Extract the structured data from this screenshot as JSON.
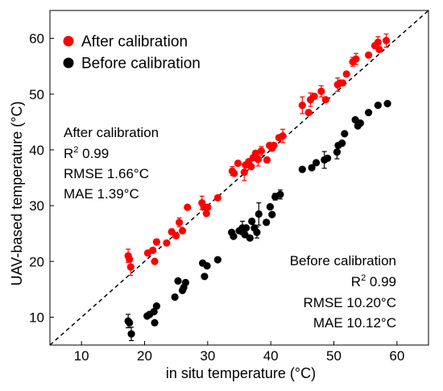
{
  "chart_data": {
    "type": "scatter",
    "xlabel": "in situ temperature (°C)",
    "ylabel": "UAV-based temperature (°C)",
    "xlim": [
      5,
      65
    ],
    "ylim": [
      5,
      65
    ],
    "xticks": [
      10,
      20,
      30,
      40,
      50,
      60
    ],
    "yticks": [
      10,
      20,
      30,
      40,
      50,
      60
    ],
    "reference_line": "y = x (dashed)",
    "grid": false,
    "legend_position": "top-left",
    "series": [
      {
        "name": "After calibration",
        "color": "#ff0000",
        "points": [
          [
            17.4,
            21.0,
            1.2
          ],
          [
            17.6,
            20.4,
            0
          ],
          [
            17.8,
            19.0,
            1.5
          ],
          [
            20.5,
            21.5,
            0
          ],
          [
            21.3,
            22.0,
            0
          ],
          [
            21.6,
            20.0,
            0
          ],
          [
            21.9,
            23.5,
            0.5
          ],
          [
            23.5,
            23.3,
            0
          ],
          [
            24.3,
            25.3,
            0.5
          ],
          [
            25.0,
            24.6,
            0
          ],
          [
            25.5,
            27.0,
            0.8
          ],
          [
            26.0,
            25.5,
            0
          ],
          [
            26.8,
            29.7,
            0
          ],
          [
            29.1,
            30.5,
            1.2
          ],
          [
            29.4,
            29.8,
            0
          ],
          [
            29.8,
            28.6,
            0
          ],
          [
            30.0,
            29.7,
            0
          ],
          [
            31.6,
            31.4,
            0
          ],
          [
            33.9,
            36.2,
            0.8
          ],
          [
            34.2,
            35.8,
            0
          ],
          [
            34.8,
            37.6,
            0
          ],
          [
            35.8,
            36.0,
            1.5
          ],
          [
            36.0,
            37.3,
            0
          ],
          [
            36.5,
            37.9,
            0
          ],
          [
            36.9,
            37.0,
            0
          ],
          [
            37.2,
            38.6,
            0
          ],
          [
            37.6,
            39.4,
            0.5
          ],
          [
            38.0,
            38.3,
            1.2
          ],
          [
            38.5,
            39.8,
            0.8
          ],
          [
            39.4,
            38.2,
            0
          ],
          [
            39.8,
            40.8,
            0
          ],
          [
            40.2,
            40.3,
            0
          ],
          [
            40.5,
            40.8,
            0
          ],
          [
            41.3,
            42.2,
            0
          ],
          [
            41.9,
            42.5,
            1.2
          ],
          [
            45.0,
            48.0,
            1.5
          ],
          [
            46.0,
            46.7,
            0
          ],
          [
            46.3,
            49.0,
            1.2
          ],
          [
            46.9,
            49.6,
            0
          ],
          [
            48.0,
            50.5,
            1.0
          ],
          [
            48.7,
            49.0,
            0
          ],
          [
            50.6,
            51.7,
            1.2
          ],
          [
            51.0,
            52.0,
            0
          ],
          [
            51.4,
            52.0,
            0
          ],
          [
            52.0,
            53.6,
            0
          ],
          [
            53.0,
            55.8,
            0.8
          ],
          [
            53.5,
            56.3,
            1.0
          ],
          [
            55.5,
            57.0,
            0
          ],
          [
            56.5,
            58.7,
            0
          ],
          [
            57.0,
            59.3,
            1.0
          ],
          [
            57.2,
            58.0,
            0
          ],
          [
            58.3,
            59.6,
            1.2
          ]
        ]
      },
      {
        "name": "Before calibration",
        "color": "#000000",
        "points": [
          [
            17.4,
            9.3,
            1.2
          ],
          [
            17.6,
            9.0,
            0
          ],
          [
            17.9,
            7.0,
            1.2
          ],
          [
            20.4,
            10.2,
            0
          ],
          [
            20.8,
            10.5,
            0
          ],
          [
            21.5,
            11.0,
            0
          ],
          [
            21.6,
            9.0,
            0
          ],
          [
            21.9,
            12.0,
            0
          ],
          [
            24.8,
            13.6,
            0
          ],
          [
            25.3,
            16.5,
            0
          ],
          [
            26.0,
            14.8,
            0
          ],
          [
            26.2,
            15.3,
            0
          ],
          [
            26.5,
            16.2,
            0
          ],
          [
            29.2,
            19.7,
            0
          ],
          [
            29.5,
            17.3,
            0
          ],
          [
            29.9,
            19.2,
            0
          ],
          [
            31.6,
            20.3,
            0
          ],
          [
            33.8,
            25.2,
            0
          ],
          [
            34.1,
            24.5,
            0
          ],
          [
            35.0,
            25.5,
            0
          ],
          [
            35.5,
            26.0,
            1.2
          ],
          [
            35.9,
            24.8,
            0
          ],
          [
            36.1,
            26.0,
            0
          ],
          [
            36.7,
            24.2,
            0
          ],
          [
            37.0,
            27.2,
            0
          ],
          [
            37.4,
            26.0,
            0
          ],
          [
            37.8,
            25.2,
            1.0
          ],
          [
            38.1,
            28.5,
            2.0
          ],
          [
            39.3,
            27.0,
            0
          ],
          [
            39.9,
            29.8,
            0
          ],
          [
            40.2,
            28.4,
            0
          ],
          [
            40.7,
            31.6,
            0.6
          ],
          [
            41.5,
            32.0,
            0.8
          ],
          [
            45.0,
            36.5,
            0
          ],
          [
            46.5,
            36.8,
            0
          ],
          [
            47.2,
            37.7,
            0
          ],
          [
            48.5,
            38.2,
            1.5
          ],
          [
            49.0,
            38.5,
            0
          ],
          [
            50.5,
            39.6,
            1.2
          ],
          [
            50.7,
            40.8,
            0
          ],
          [
            51.3,
            41.2,
            0
          ],
          [
            51.7,
            42.9,
            0
          ],
          [
            53.4,
            45.4,
            0
          ],
          [
            53.8,
            44.3,
            0
          ],
          [
            54.2,
            44.8,
            0
          ],
          [
            55.5,
            46.7,
            0
          ],
          [
            57.0,
            48.0,
            0
          ],
          [
            58.5,
            48.3,
            0
          ]
        ]
      }
    ],
    "stats": [
      {
        "title": "After calibration",
        "r2_label": "R",
        "r2_sup": "2",
        "r2_value": " 0.99",
        "rmse": "RMSE 1.66°C",
        "mae": "MAE 1.39°C"
      },
      {
        "title": "Before calibration",
        "r2_label": "R",
        "r2_sup": "2",
        "r2_value": " 0.99",
        "rmse": "RMSE 10.20°C",
        "mae": "MAE 10.12°C"
      }
    ]
  }
}
